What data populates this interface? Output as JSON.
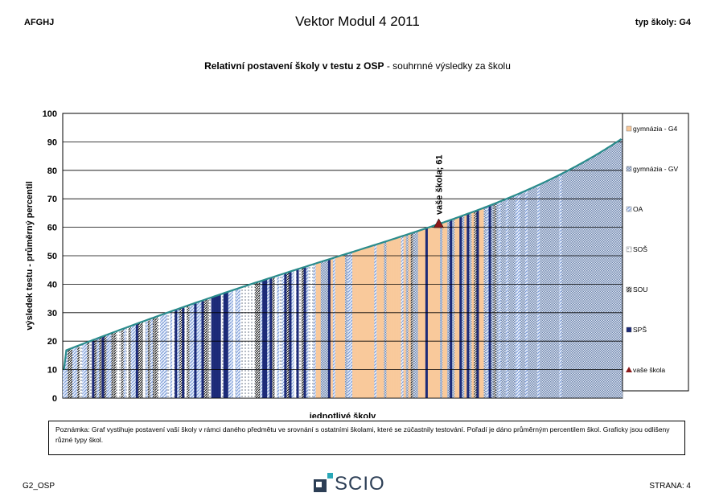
{
  "header": {
    "left": "AFGHJ",
    "title": "Vektor Modul 4 2011",
    "right": "typ školy: G4"
  },
  "chart_title": {
    "bold": "Relativní postavení školy v testu z OSP",
    "normal": "- souhrnné výsledky za školu"
  },
  "chart_data": {
    "type": "bar",
    "title": "Relativní postavení školy v testu z OSP - souhrnné výsledky za školu",
    "xlabel": "jednotlivé školy",
    "ylabel": "výsledek testu - průměrný percentil",
    "ylim": [
      0,
      100
    ],
    "yticks": [
      0,
      10,
      20,
      30,
      40,
      50,
      60,
      70,
      80,
      90,
      100
    ],
    "grid": true,
    "legend_position": "right",
    "school_count": 230,
    "value_range": [
      10,
      91
    ],
    "series": [
      {
        "name": "gymnázia - G4",
        "color": "#f9c99b"
      },
      {
        "name": "gymnázia - GV",
        "color": "#8fa3c4"
      },
      {
        "name": "OA",
        "color": "#9fb7e0"
      },
      {
        "name": "SOŠ",
        "color": "#c7cbd2"
      },
      {
        "name": "SOU",
        "color": "#444444"
      },
      {
        "name": "SPŠ",
        "color": "#1c2a78"
      },
      {
        "name": "vaše škola",
        "color": "#8b1a1a"
      }
    ],
    "annotation": {
      "text": "vaše škola; 61",
      "value": 61
    }
  },
  "note": "Poznámka: Graf vystihuje postavení vaší školy v rámci daného předmětu ve srovnání s ostatními školami, které se zúčastnily testování. Pořadí je dáno průměrným percentilem škol. Graficky jsou odlišeny různé typy škol.",
  "footer": {
    "left": "G2_OSP",
    "logo_text": "SCIO",
    "right": "STRANA: 4"
  },
  "colors": {
    "curve": "#2a8c8c",
    "marker": "#8b1a1a"
  }
}
